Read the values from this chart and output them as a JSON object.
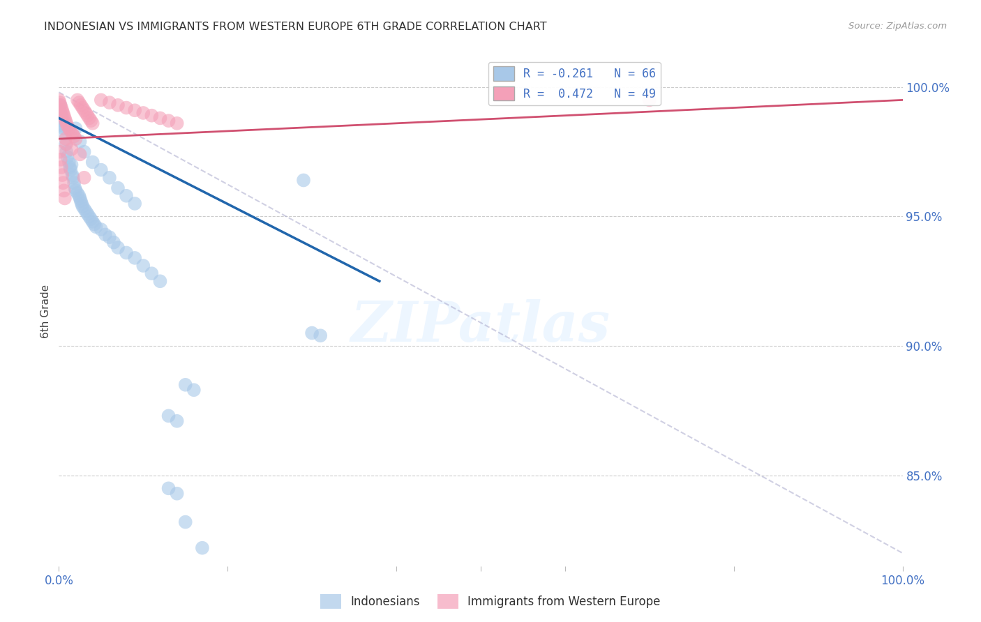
{
  "title": "INDONESIAN VS IMMIGRANTS FROM WESTERN EUROPE 6TH GRADE CORRELATION CHART",
  "source": "Source: ZipAtlas.com",
  "ylabel": "6th Grade",
  "watermark": "ZIPatlas",
  "legend_r1": "R = -0.261",
  "legend_n1": "N = 66",
  "legend_r2": "R =  0.472",
  "legend_n2": "N = 49",
  "blue_color": "#a8c8e8",
  "blue_line_color": "#2166ac",
  "pink_color": "#f4a0b8",
  "pink_line_color": "#d05070",
  "xlim": [
    0.0,
    1.0
  ],
  "ylim": [
    81.5,
    101.2
  ],
  "blue_trend_x": [
    0.0,
    0.38
  ],
  "blue_trend_y": [
    98.8,
    92.5
  ],
  "pink_trend_x": [
    0.0,
    1.0
  ],
  "pink_trend_y": [
    98.0,
    99.5
  ],
  "gray_trend_x": [
    0.0,
    1.0
  ],
  "gray_trend_y": [
    99.8,
    82.0
  ],
  "grid_color": "#cccccc",
  "tick_color": "#4472C4",
  "title_color": "#333333",
  "background_color": "#ffffff",
  "blue_scatter": [
    [
      0.001,
      99.1
    ],
    [
      0.0015,
      99.3
    ],
    [
      0.002,
      99.0
    ],
    [
      0.0025,
      98.8
    ],
    [
      0.003,
      98.6
    ],
    [
      0.003,
      98.9
    ],
    [
      0.004,
      98.7
    ],
    [
      0.005,
      98.5
    ],
    [
      0.006,
      98.4
    ],
    [
      0.007,
      98.2
    ],
    [
      0.008,
      97.8
    ],
    [
      0.009,
      97.5
    ],
    [
      0.01,
      97.3
    ],
    [
      0.012,
      97.1
    ],
    [
      0.013,
      96.9
    ],
    [
      0.014,
      96.8
    ],
    [
      0.015,
      97.0
    ],
    [
      0.016,
      96.6
    ],
    [
      0.017,
      96.5
    ],
    [
      0.018,
      96.3
    ],
    [
      0.019,
      96.1
    ],
    [
      0.02,
      96.0
    ],
    [
      0.022,
      95.9
    ],
    [
      0.024,
      95.8
    ],
    [
      0.025,
      95.7
    ],
    [
      0.026,
      95.6
    ],
    [
      0.027,
      95.5
    ],
    [
      0.028,
      95.4
    ],
    [
      0.03,
      95.3
    ],
    [
      0.032,
      95.2
    ],
    [
      0.034,
      95.1
    ],
    [
      0.036,
      95.0
    ],
    [
      0.038,
      94.9
    ],
    [
      0.04,
      94.8
    ],
    [
      0.042,
      94.7
    ],
    [
      0.044,
      94.6
    ],
    [
      0.05,
      94.5
    ],
    [
      0.055,
      94.3
    ],
    [
      0.06,
      94.2
    ],
    [
      0.065,
      94.0
    ],
    [
      0.07,
      93.8
    ],
    [
      0.08,
      93.6
    ],
    [
      0.09,
      93.4
    ],
    [
      0.1,
      93.1
    ],
    [
      0.11,
      92.8
    ],
    [
      0.12,
      92.5
    ],
    [
      0.02,
      98.4
    ],
    [
      0.025,
      97.9
    ],
    [
      0.03,
      97.5
    ],
    [
      0.04,
      97.1
    ],
    [
      0.05,
      96.8
    ],
    [
      0.06,
      96.5
    ],
    [
      0.07,
      96.1
    ],
    [
      0.08,
      95.8
    ],
    [
      0.09,
      95.5
    ],
    [
      0.29,
      96.4
    ],
    [
      0.3,
      90.5
    ],
    [
      0.31,
      90.4
    ],
    [
      0.15,
      88.5
    ],
    [
      0.16,
      88.3
    ],
    [
      0.13,
      87.3
    ],
    [
      0.14,
      87.1
    ],
    [
      0.15,
      83.2
    ],
    [
      0.17,
      82.2
    ],
    [
      0.13,
      84.5
    ],
    [
      0.14,
      84.3
    ]
  ],
  "pink_scatter": [
    [
      0.0,
      99.5
    ],
    [
      0.001,
      99.4
    ],
    [
      0.002,
      99.3
    ],
    [
      0.003,
      99.2
    ],
    [
      0.004,
      99.1
    ],
    [
      0.005,
      99.0
    ],
    [
      0.006,
      98.9
    ],
    [
      0.007,
      98.8
    ],
    [
      0.008,
      98.7
    ],
    [
      0.009,
      98.6
    ],
    [
      0.01,
      98.5
    ],
    [
      0.012,
      98.4
    ],
    [
      0.014,
      98.3
    ],
    [
      0.016,
      98.2
    ],
    [
      0.018,
      98.1
    ],
    [
      0.02,
      98.0
    ],
    [
      0.022,
      99.5
    ],
    [
      0.024,
      99.4
    ],
    [
      0.026,
      99.3
    ],
    [
      0.028,
      99.2
    ],
    [
      0.03,
      99.1
    ],
    [
      0.032,
      99.0
    ],
    [
      0.034,
      98.9
    ],
    [
      0.036,
      98.8
    ],
    [
      0.038,
      98.7
    ],
    [
      0.04,
      98.6
    ],
    [
      0.05,
      99.5
    ],
    [
      0.06,
      99.4
    ],
    [
      0.07,
      99.3
    ],
    [
      0.08,
      99.2
    ],
    [
      0.09,
      99.1
    ],
    [
      0.1,
      99.0
    ],
    [
      0.11,
      98.9
    ],
    [
      0.12,
      98.8
    ],
    [
      0.13,
      98.7
    ],
    [
      0.14,
      98.6
    ],
    [
      0.001,
      97.5
    ],
    [
      0.002,
      97.2
    ],
    [
      0.003,
      96.9
    ],
    [
      0.004,
      96.6
    ],
    [
      0.005,
      96.3
    ],
    [
      0.006,
      96.0
    ],
    [
      0.007,
      95.7
    ],
    [
      0.008,
      98.0
    ],
    [
      0.009,
      97.8
    ],
    [
      0.015,
      97.6
    ],
    [
      0.025,
      97.4
    ],
    [
      0.7,
      99.5
    ],
    [
      0.03,
      96.5
    ]
  ]
}
